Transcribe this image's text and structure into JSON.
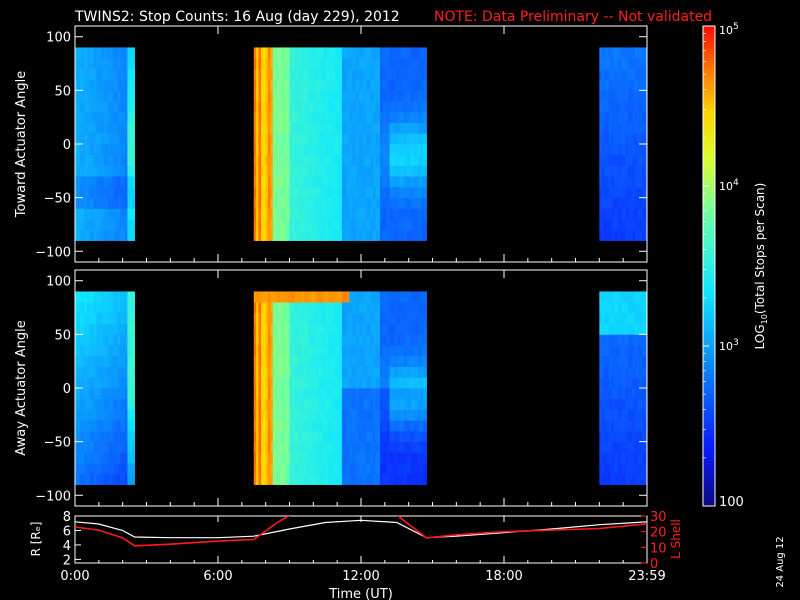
{
  "title": "TWINS2: Stop Counts: 16 Aug (day 229), 2012",
  "note": "NOTE: Data Preliminary -- Not validated",
  "date_stamp": "24 Aug 12",
  "colors": {
    "note": "#ff2020",
    "background": "#000000",
    "foreground": "#ffffff",
    "lshell_line": "#ff1a1a",
    "r_line": "#ffffff"
  },
  "chart_data": [
    {
      "type": "heatmap",
      "panel": "top",
      "ylabel": "Toward Actuator Angle",
      "ylim": [
        -110,
        110
      ],
      "yticks": [
        100,
        50,
        0,
        -50,
        -100
      ],
      "ytick_labels": [
        "100",
        "50",
        "0",
        "−50",
        "−100"
      ],
      "xlim": [
        0,
        24
      ],
      "data_angle_range": [
        -90,
        90
      ],
      "data_time_blocks_hours": [
        [
          0,
          2.5
        ],
        [
          7.5,
          14.75
        ],
        [
          22.0,
          24.0
        ]
      ]
    },
    {
      "type": "heatmap",
      "panel": "middle",
      "ylabel": "Away Actuator Angle",
      "ylim": [
        -110,
        110
      ],
      "yticks": [
        100,
        50,
        0,
        -50,
        -100
      ],
      "ytick_labels": [
        "100",
        "50",
        "0",
        "−50",
        "−100"
      ],
      "xlim": [
        0,
        24
      ],
      "data_angle_range": [
        -90,
        90
      ],
      "data_time_blocks_hours": [
        [
          0,
          2.5
        ],
        [
          7.5,
          14.75
        ],
        [
          22.0,
          24.0
        ]
      ]
    },
    {
      "type": "line",
      "panel": "bottom",
      "ylabel_left": "R [Rₑ]",
      "ylabel_right": "L Shell",
      "xlabel": "Time (UT)",
      "xlim": [
        0,
        24
      ],
      "xticks": [
        0,
        6,
        12,
        18,
        24
      ],
      "xtick_labels": [
        "0:00",
        "6:00",
        "12:00",
        "18:00",
        "23:59"
      ],
      "ylim_left": [
        1.5,
        8
      ],
      "yticks_left": [
        2,
        4,
        6,
        8
      ],
      "ylim_right": [
        0,
        30
      ],
      "yticks_right": [
        0,
        10,
        20,
        30
      ],
      "series": [
        {
          "name": "R [Rₑ]",
          "axis": "left",
          "x": [
            0,
            1,
            2,
            2.5,
            4,
            6,
            7.5,
            9,
            10.5,
            12,
            13.5,
            14.75,
            16,
            18,
            20,
            22,
            24
          ],
          "y": [
            7.2,
            6.9,
            6.0,
            5.1,
            5.0,
            5.0,
            5.2,
            6.2,
            7.1,
            7.4,
            7.1,
            5.0,
            5.2,
            5.7,
            6.2,
            6.8,
            7.2
          ]
        },
        {
          "name": "L Shell",
          "axis": "right",
          "x": [
            0,
            1,
            2,
            2.5,
            4,
            6,
            7.5,
            8.5,
            9.3,
            13.3,
            14.75,
            16,
            18,
            20,
            22,
            24
          ],
          "y": [
            23,
            21,
            16,
            11,
            12,
            14,
            15,
            26,
            33,
            33,
            16,
            18,
            20,
            21,
            22,
            25
          ]
        }
      ]
    }
  ],
  "colorbar": {
    "label_prefix": "LOG",
    "label_sub": "10",
    "label_suffix": "(Total Stops per Scan)",
    "tick_labels": [
      {
        "base": "10",
        "exp": "5",
        "value": 100000
      },
      {
        "base": "10",
        "exp": "4",
        "value": 10000
      },
      {
        "base": "10",
        "exp": "3",
        "value": 1000
      },
      {
        "base": "100",
        "exp": "",
        "value": 100
      }
    ]
  }
}
